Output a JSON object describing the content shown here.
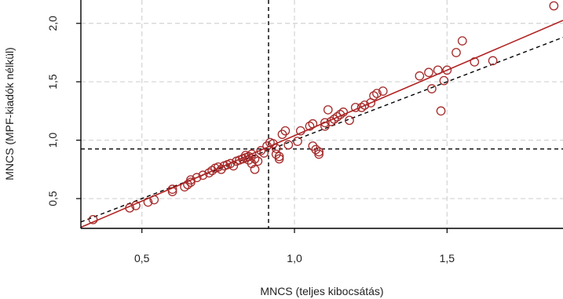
{
  "chart_data": {
    "type": "scatter",
    "title": "",
    "xlabel": "MNCS (teljes kibocsátás)",
    "ylabel": "MNCS (MPF-kiadók nélkül)",
    "xlim": [
      0.3,
      1.88
    ],
    "ylim": [
      0.245,
      2.2
    ],
    "xticks": [
      0.5,
      1.0,
      1.5
    ],
    "xtick_labels": [
      "0,5",
      "1,0",
      "1,5"
    ],
    "yticks": [
      0.5,
      1.0,
      1.5,
      2.0
    ],
    "ytick_labels": [
      "0,5",
      "1,0",
      "1,5",
      "2,0"
    ],
    "grid": true,
    "reference_lines": {
      "vertical_x": 0.915,
      "horizontal_y": 0.925,
      "identity_line": {
        "slope": 1,
        "intercept": 0
      },
      "fit_line": {
        "slope": 1.121,
        "intercept": -0.082
      }
    },
    "colors": {
      "points": "#a52a2a",
      "fit_line": "#b22222",
      "reference": "#000000",
      "grid": "#d3d3d3"
    },
    "points": [
      [
        0.34,
        0.32
      ],
      [
        0.46,
        0.42
      ],
      [
        0.48,
        0.44
      ],
      [
        0.52,
        0.47
      ],
      [
        0.54,
        0.49
      ],
      [
        0.6,
        0.56
      ],
      [
        0.6,
        0.58
      ],
      [
        0.64,
        0.6
      ],
      [
        0.65,
        0.62
      ],
      [
        0.66,
        0.64
      ],
      [
        0.66,
        0.66
      ],
      [
        0.68,
        0.68
      ],
      [
        0.7,
        0.7
      ],
      [
        0.72,
        0.72
      ],
      [
        0.73,
        0.74
      ],
      [
        0.74,
        0.76
      ],
      [
        0.75,
        0.77
      ],
      [
        0.76,
        0.75
      ],
      [
        0.77,
        0.78
      ],
      [
        0.78,
        0.79
      ],
      [
        0.79,
        0.8
      ],
      [
        0.8,
        0.78
      ],
      [
        0.81,
        0.82
      ],
      [
        0.82,
        0.83
      ],
      [
        0.83,
        0.84
      ],
      [
        0.84,
        0.85
      ],
      [
        0.84,
        0.87
      ],
      [
        0.85,
        0.86
      ],
      [
        0.85,
        0.83
      ],
      [
        0.86,
        0.88
      ],
      [
        0.86,
        0.8
      ],
      [
        0.87,
        0.84
      ],
      [
        0.87,
        0.75
      ],
      [
        0.88,
        0.82
      ],
      [
        0.89,
        0.91
      ],
      [
        0.9,
        0.89
      ],
      [
        0.91,
        0.95
      ],
      [
        0.92,
        0.98
      ],
      [
        0.93,
        0.97
      ],
      [
        0.94,
        0.88
      ],
      [
        0.94,
        0.93
      ],
      [
        0.95,
        0.86
      ],
      [
        0.95,
        0.84
      ],
      [
        0.96,
        1.05
      ],
      [
        0.97,
        1.08
      ],
      [
        0.98,
        0.96
      ],
      [
        1.01,
        0.99
      ],
      [
        1.02,
        1.08
      ],
      [
        1.05,
        1.12
      ],
      [
        1.06,
        1.14
      ],
      [
        1.06,
        0.95
      ],
      [
        1.07,
        0.92
      ],
      [
        1.08,
        0.88
      ],
      [
        1.08,
        0.9
      ],
      [
        1.1,
        1.12
      ],
      [
        1.1,
        1.15
      ],
      [
        1.11,
        1.26
      ],
      [
        1.12,
        1.16
      ],
      [
        1.13,
        1.18
      ],
      [
        1.14,
        1.2
      ],
      [
        1.15,
        1.22
      ],
      [
        1.16,
        1.24
      ],
      [
        1.18,
        1.17
      ],
      [
        1.2,
        1.28
      ],
      [
        1.22,
        1.28
      ],
      [
        1.23,
        1.3
      ],
      [
        1.25,
        1.32
      ],
      [
        1.26,
        1.38
      ],
      [
        1.27,
        1.4
      ],
      [
        1.29,
        1.42
      ],
      [
        1.41,
        1.55
      ],
      [
        1.44,
        1.58
      ],
      [
        1.45,
        1.44
      ],
      [
        1.47,
        1.6
      ],
      [
        1.48,
        1.25
      ],
      [
        1.49,
        1.51
      ],
      [
        1.5,
        1.6
      ],
      [
        1.53,
        1.75
      ],
      [
        1.55,
        1.85
      ],
      [
        1.59,
        1.67
      ],
      [
        1.65,
        1.68
      ],
      [
        1.85,
        2.15
      ]
    ]
  }
}
